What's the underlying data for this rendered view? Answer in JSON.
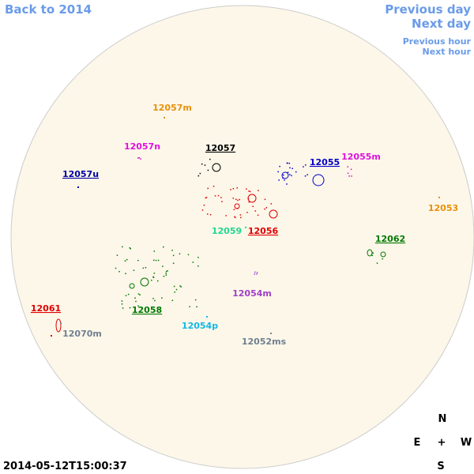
{
  "nav": {
    "back": "Back to 2014",
    "previous_day": "Previous day",
    "next_day": "Next day",
    "previous_hour": "Previous hour",
    "next_hour": "Next hour"
  },
  "regions": [
    {
      "label": "12057m",
      "color": "#e8900a",
      "link": false
    },
    {
      "label": "12057n",
      "color": "#e010e0",
      "link": false
    },
    {
      "label": "12057",
      "color": "#000000",
      "link": true
    },
    {
      "label": "12055",
      "color": "#0000c8",
      "link": true
    },
    {
      "label": "12055m",
      "color": "#e010e0",
      "link": false
    },
    {
      "label": "12057u",
      "color": "#0000a0",
      "link": true
    },
    {
      "label": "12053",
      "color": "#e8900a",
      "link": false
    },
    {
      "label": "12059",
      "color": "#20d890",
      "link": false
    },
    {
      "label": "12056",
      "color": "#e00000",
      "link": true
    },
    {
      "label": "12062",
      "color": "#007800",
      "link": true
    },
    {
      "label": "12054m",
      "color": "#a040c8",
      "link": false
    },
    {
      "label": "12061",
      "color": "#e00000",
      "link": true
    },
    {
      "label": "12058",
      "color": "#007800",
      "link": true
    },
    {
      "label": "12054p",
      "color": "#10b8e8",
      "link": false
    },
    {
      "label": "12070m",
      "color": "#708090",
      "link": false
    },
    {
      "label": "12052ms",
      "color": "#708090",
      "link": false
    }
  ],
  "compass": {
    "north": "N",
    "east": "E",
    "center": "+",
    "west": "W",
    "south": "S"
  },
  "timestamp": "2014-05-12T15:00:37"
}
